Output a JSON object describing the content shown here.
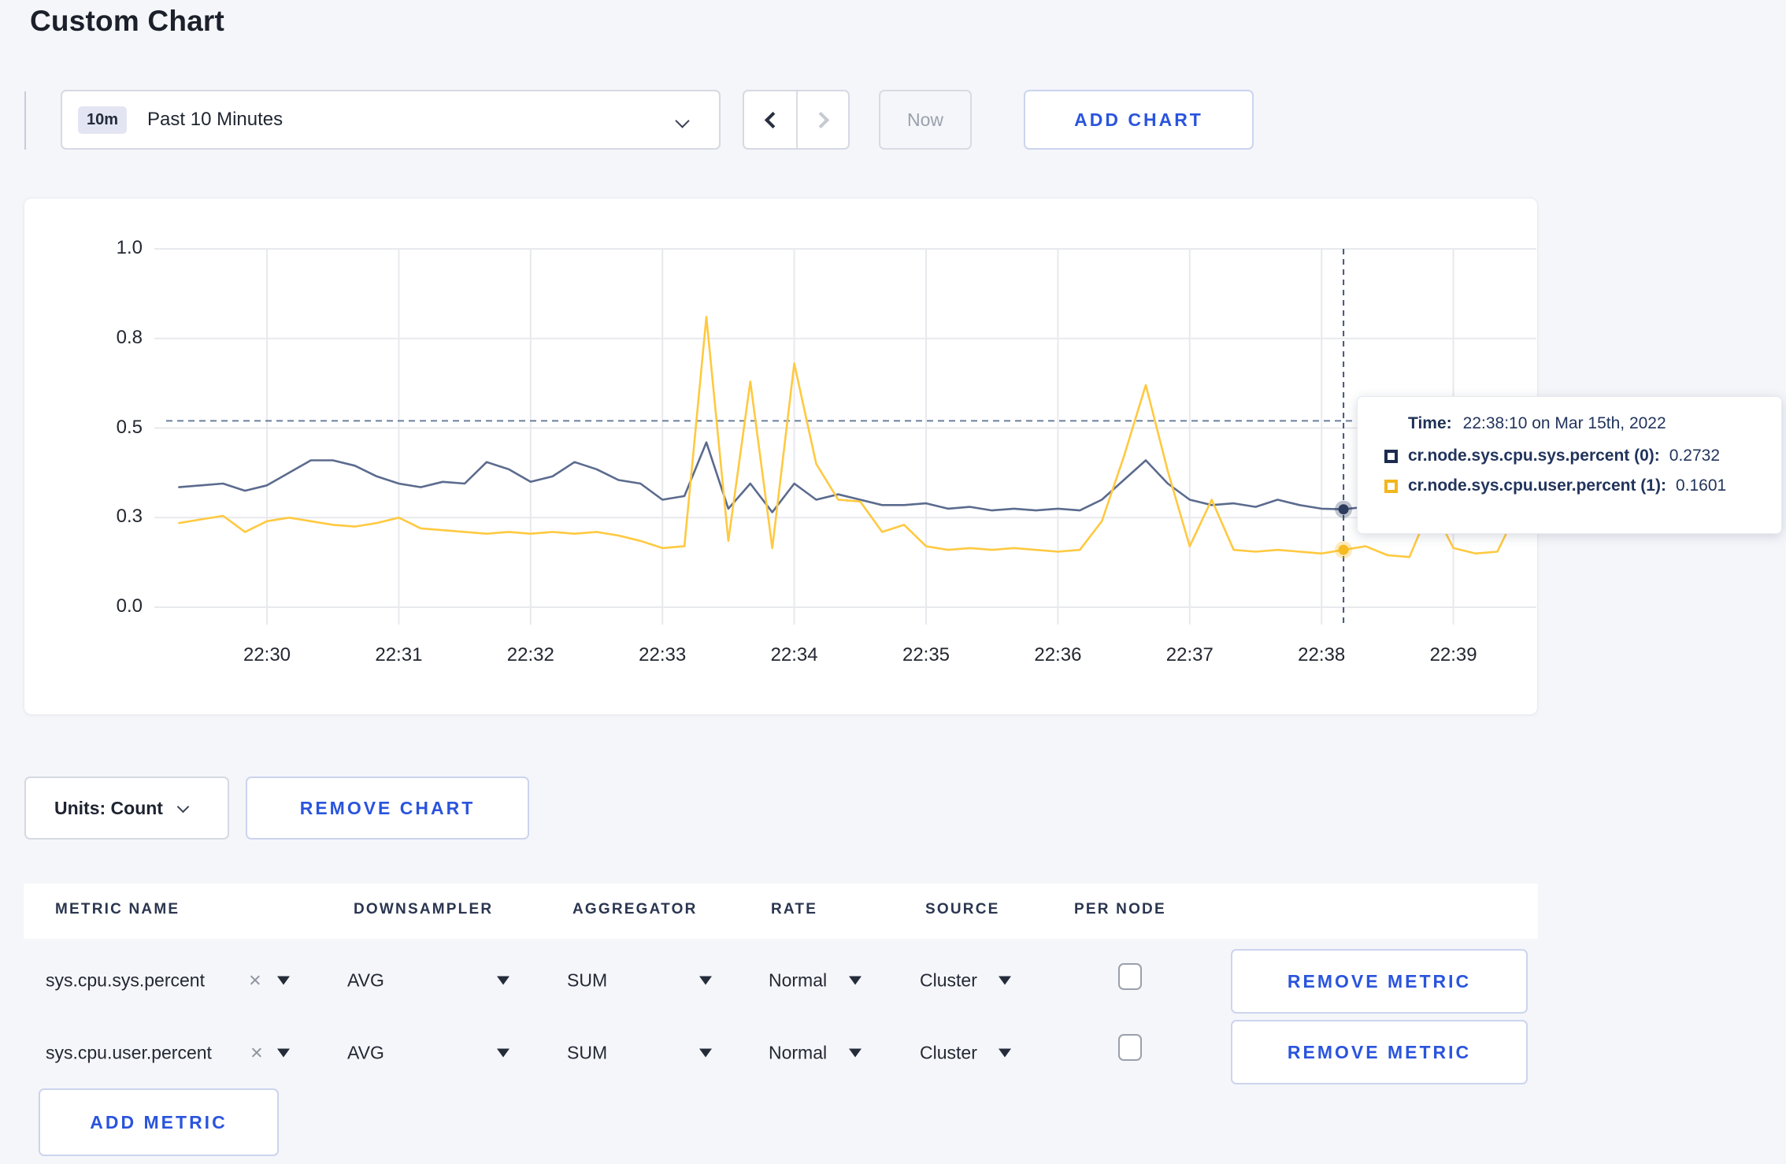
{
  "page": {
    "title": "Custom Chart"
  },
  "toolbar": {
    "time_range_badge": "10m",
    "time_range_label": "Past 10 Minutes",
    "now_label": "Now",
    "add_chart_label": "ADD CHART"
  },
  "tooltip": {
    "time_label": "Time:",
    "time_value": "22:38:10 on Mar 15th, 2022",
    "series": [
      {
        "label": "cr.node.sys.cpu.sys.percent (0):",
        "value": "0.2732",
        "color": "#1c2b4e"
      },
      {
        "label": "cr.node.sys.cpu.user.percent (1):",
        "value": "0.1601",
        "color": "#f2b71d"
      }
    ]
  },
  "units_toolbar": {
    "units_label": "Units: Count",
    "remove_chart_label": "REMOVE CHART"
  },
  "metrics_table": {
    "columns": [
      "METRIC NAME",
      "DOWNSAMPLER",
      "AGGREGATOR",
      "RATE",
      "SOURCE",
      "PER NODE"
    ],
    "rows": [
      {
        "name": "sys.cpu.sys.percent",
        "clear_icon": "×",
        "downsampler": "AVG",
        "aggregator": "SUM",
        "rate": "Normal",
        "source": "Cluster",
        "per_node_checked": false,
        "remove_label": "REMOVE METRIC"
      },
      {
        "name": "sys.cpu.user.percent",
        "clear_icon": "×",
        "downsampler": "AVG",
        "aggregator": "SUM",
        "rate": "Normal",
        "source": "Cluster",
        "per_node_checked": false,
        "remove_label": "REMOVE METRIC"
      }
    ],
    "add_metric_label": "ADD METRIC"
  },
  "chart_data": {
    "type": "line",
    "title": "",
    "xlabel": "",
    "ylabel": "",
    "ylim": [
      0,
      1.0
    ],
    "grid": true,
    "legend_position": "tooltip",
    "x_start": "22:29:20",
    "x_interval_seconds": 10,
    "x_ticks": [
      "22:30",
      "22:31",
      "22:32",
      "22:33",
      "22:34",
      "22:35",
      "22:36",
      "22:37",
      "22:38",
      "22:39"
    ],
    "y_tick_labels": [
      "0.0",
      "0.3",
      "0.5",
      "0.8",
      "1.0"
    ],
    "y_tick_positions": [
      0,
      0.25,
      0.5,
      0.75,
      1.0
    ],
    "series": [
      {
        "name": "cr.node.sys.cpu.sys.percent (0)",
        "color": "#5b6b8e",
        "values": [
          0.335,
          0.34,
          0.345,
          0.325,
          0.34,
          0.375,
          0.41,
          0.41,
          0.395,
          0.365,
          0.345,
          0.335,
          0.35,
          0.345,
          0.405,
          0.385,
          0.35,
          0.365,
          0.405,
          0.385,
          0.355,
          0.345,
          0.3,
          0.31,
          0.46,
          0.275,
          0.345,
          0.265,
          0.345,
          0.3,
          0.315,
          0.3,
          0.285,
          0.285,
          0.29,
          0.275,
          0.28,
          0.27,
          0.275,
          0.27,
          0.275,
          0.27,
          0.3,
          0.355,
          0.41,
          0.345,
          0.3,
          0.285,
          0.29,
          0.28,
          0.3,
          0.285,
          0.275,
          0.2732,
          0.28,
          0.265,
          0.3,
          0.295,
          0.27,
          0.275,
          0.295,
          0.29,
          0.295
        ]
      },
      {
        "name": "cr.node.sys.cpu.user.percent (1)",
        "color": "#ffc940",
        "values": [
          0.235,
          0.245,
          0.255,
          0.21,
          0.24,
          0.25,
          0.24,
          0.23,
          0.225,
          0.235,
          0.25,
          0.22,
          0.215,
          0.21,
          0.205,
          0.21,
          0.205,
          0.21,
          0.205,
          0.21,
          0.2,
          0.185,
          0.165,
          0.17,
          0.81,
          0.185,
          0.63,
          0.165,
          0.68,
          0.4,
          0.3,
          0.295,
          0.21,
          0.23,
          0.17,
          0.16,
          0.165,
          0.16,
          0.165,
          0.16,
          0.155,
          0.16,
          0.24,
          0.42,
          0.62,
          0.38,
          0.17,
          0.3,
          0.16,
          0.155,
          0.16,
          0.155,
          0.15,
          0.1601,
          0.17,
          0.145,
          0.14,
          0.285,
          0.165,
          0.15,
          0.155,
          0.28,
          0.235
        ]
      }
    ],
    "crosshair": {
      "time": "22:38:10",
      "guide_value": 0.52,
      "points": [
        0.2732,
        0.1601
      ],
      "dot_colors": [
        "#2c3c5e",
        "#f5bb21"
      ]
    }
  }
}
